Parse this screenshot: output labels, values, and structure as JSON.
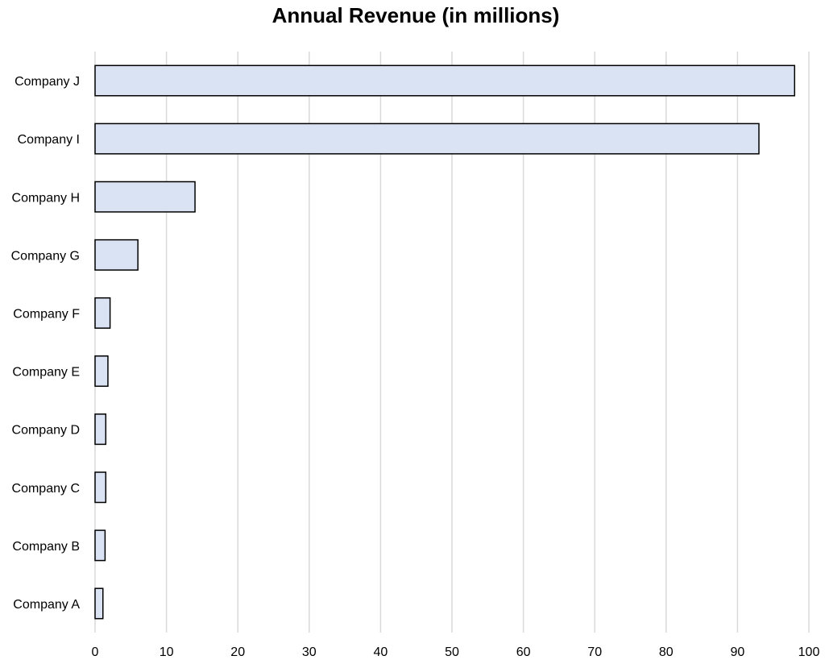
{
  "chart_data": {
    "type": "bar",
    "orientation": "horizontal",
    "title": "Annual Revenue (in millions)",
    "xlabel": "",
    "ylabel": "",
    "categories": [
      "Company J",
      "Company I",
      "Company H",
      "Company G",
      "Company F",
      "Company E",
      "Company D",
      "Company C",
      "Company B",
      "Company A"
    ],
    "values": [
      98,
      93,
      14,
      6,
      2.1,
      1.8,
      1.5,
      1.5,
      1.4,
      1.1
    ],
    "xlim": [
      0,
      100
    ],
    "xticks": [
      0,
      10,
      20,
      30,
      40,
      50,
      60,
      70,
      80,
      90,
      100
    ],
    "grid": true,
    "legend": "none",
    "bar_color": "#dae3f3",
    "bar_edge_color": "#000000",
    "grid_color": "#d9d9d9"
  }
}
